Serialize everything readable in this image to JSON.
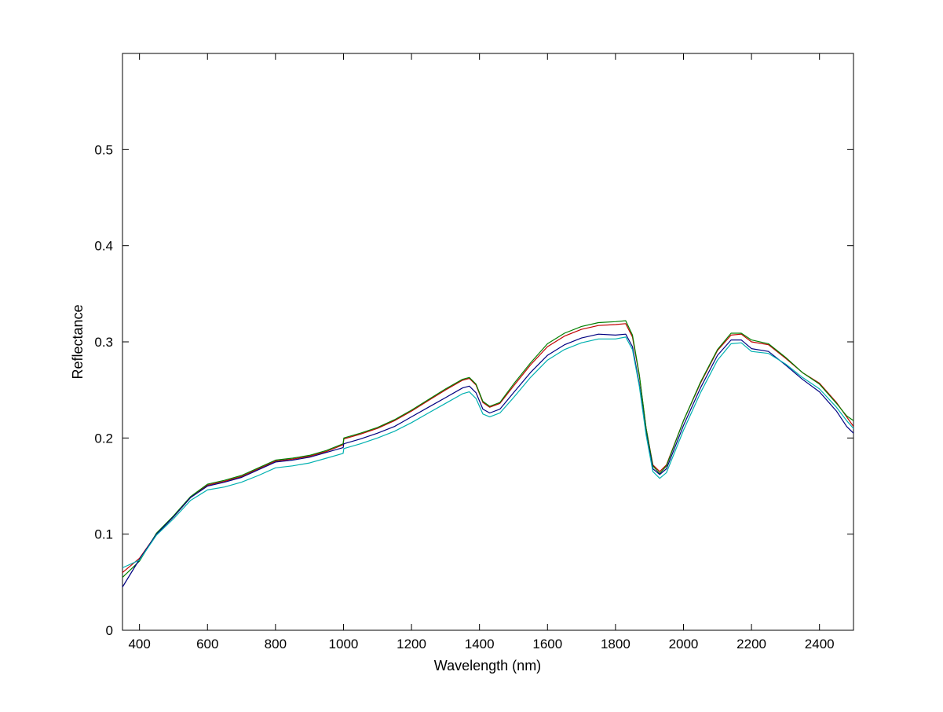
{
  "chart_data": {
    "type": "line",
    "xlabel": "Wavelength (nm)",
    "ylabel": "Reflectance",
    "xlim": [
      350,
      2500
    ],
    "ylim": [
      0,
      0.6
    ],
    "x_ticks": [
      400,
      600,
      800,
      1000,
      1200,
      1400,
      1600,
      1800,
      2000,
      2200,
      2400
    ],
    "y_ticks": [
      0,
      0.1,
      0.2,
      0.3,
      0.4,
      0.5
    ],
    "y_tick_labels": [
      "0",
      "0.1",
      "0.2",
      "0.3",
      "0.4",
      "0.5"
    ],
    "grid": false,
    "series": [
      {
        "color": "#c00000",
        "points": [
          [
            350,
            0.06
          ],
          [
            400,
            0.075
          ],
          [
            450,
            0.1
          ],
          [
            500,
            0.118
          ],
          [
            550,
            0.138
          ],
          [
            600,
            0.151
          ],
          [
            650,
            0.155
          ],
          [
            700,
            0.16
          ],
          [
            750,
            0.168
          ],
          [
            800,
            0.176
          ],
          [
            850,
            0.178
          ],
          [
            900,
            0.181
          ],
          [
            950,
            0.186
          ],
          [
            999,
            0.193
          ],
          [
            1001,
            0.199
          ],
          [
            1050,
            0.204
          ],
          [
            1100,
            0.21
          ],
          [
            1150,
            0.218
          ],
          [
            1200,
            0.228
          ],
          [
            1250,
            0.239
          ],
          [
            1300,
            0.25
          ],
          [
            1350,
            0.26
          ],
          [
            1370,
            0.262
          ],
          [
            1390,
            0.255
          ],
          [
            1410,
            0.237
          ],
          [
            1430,
            0.232
          ],
          [
            1460,
            0.236
          ],
          [
            1500,
            0.254
          ],
          [
            1550,
            0.276
          ],
          [
            1600,
            0.295
          ],
          [
            1650,
            0.306
          ],
          [
            1700,
            0.313
          ],
          [
            1750,
            0.317
          ],
          [
            1800,
            0.318
          ],
          [
            1830,
            0.319
          ],
          [
            1850,
            0.305
          ],
          [
            1870,
            0.265
          ],
          [
            1890,
            0.21
          ],
          [
            1910,
            0.172
          ],
          [
            1930,
            0.165
          ],
          [
            1950,
            0.172
          ],
          [
            2000,
            0.218
          ],
          [
            2050,
            0.257
          ],
          [
            2100,
            0.291
          ],
          [
            2140,
            0.307
          ],
          [
            2170,
            0.308
          ],
          [
            2200,
            0.3
          ],
          [
            2250,
            0.297
          ],
          [
            2300,
            0.283
          ],
          [
            2350,
            0.268
          ],
          [
            2400,
            0.257
          ],
          [
            2450,
            0.237
          ],
          [
            2480,
            0.222
          ],
          [
            2500,
            0.212
          ]
        ]
      },
      {
        "color": "#008000",
        "points": [
          [
            350,
            0.055
          ],
          [
            400,
            0.072
          ],
          [
            450,
            0.101
          ],
          [
            500,
            0.119
          ],
          [
            550,
            0.139
          ],
          [
            600,
            0.152
          ],
          [
            650,
            0.156
          ],
          [
            700,
            0.161
          ],
          [
            750,
            0.169
          ],
          [
            800,
            0.177
          ],
          [
            850,
            0.179
          ],
          [
            900,
            0.182
          ],
          [
            950,
            0.187
          ],
          [
            999,
            0.194
          ],
          [
            1001,
            0.2
          ],
          [
            1050,
            0.205
          ],
          [
            1100,
            0.211
          ],
          [
            1150,
            0.219
          ],
          [
            1200,
            0.229
          ],
          [
            1250,
            0.24
          ],
          [
            1300,
            0.251
          ],
          [
            1350,
            0.261
          ],
          [
            1370,
            0.263
          ],
          [
            1390,
            0.256
          ],
          [
            1410,
            0.238
          ],
          [
            1430,
            0.233
          ],
          [
            1460,
            0.237
          ],
          [
            1500,
            0.256
          ],
          [
            1550,
            0.278
          ],
          [
            1600,
            0.298
          ],
          [
            1650,
            0.309
          ],
          [
            1700,
            0.316
          ],
          [
            1750,
            0.32
          ],
          [
            1800,
            0.321
          ],
          [
            1830,
            0.322
          ],
          [
            1850,
            0.307
          ],
          [
            1870,
            0.266
          ],
          [
            1890,
            0.21
          ],
          [
            1910,
            0.171
          ],
          [
            1930,
            0.163
          ],
          [
            1950,
            0.171
          ],
          [
            2000,
            0.218
          ],
          [
            2050,
            0.258
          ],
          [
            2100,
            0.292
          ],
          [
            2140,
            0.309
          ],
          [
            2170,
            0.309
          ],
          [
            2200,
            0.302
          ],
          [
            2250,
            0.298
          ],
          [
            2300,
            0.284
          ],
          [
            2350,
            0.268
          ],
          [
            2400,
            0.256
          ],
          [
            2450,
            0.236
          ],
          [
            2480,
            0.223
          ],
          [
            2500,
            0.218
          ]
        ]
      },
      {
        "color": "#000080",
        "points": [
          [
            350,
            0.045
          ],
          [
            400,
            0.074
          ],
          [
            450,
            0.1
          ],
          [
            500,
            0.118
          ],
          [
            550,
            0.138
          ],
          [
            600,
            0.15
          ],
          [
            650,
            0.154
          ],
          [
            700,
            0.159
          ],
          [
            750,
            0.167
          ],
          [
            800,
            0.175
          ],
          [
            850,
            0.177
          ],
          [
            900,
            0.18
          ],
          [
            950,
            0.185
          ],
          [
            999,
            0.19
          ],
          [
            1001,
            0.194
          ],
          [
            1050,
            0.199
          ],
          [
            1100,
            0.205
          ],
          [
            1150,
            0.212
          ],
          [
            1200,
            0.222
          ],
          [
            1250,
            0.232
          ],
          [
            1300,
            0.242
          ],
          [
            1350,
            0.252
          ],
          [
            1370,
            0.254
          ],
          [
            1390,
            0.247
          ],
          [
            1410,
            0.23
          ],
          [
            1430,
            0.226
          ],
          [
            1460,
            0.23
          ],
          [
            1500,
            0.247
          ],
          [
            1550,
            0.268
          ],
          [
            1600,
            0.286
          ],
          [
            1650,
            0.297
          ],
          [
            1700,
            0.304
          ],
          [
            1750,
            0.308
          ],
          [
            1800,
            0.307
          ],
          [
            1830,
            0.308
          ],
          [
            1850,
            0.295
          ],
          [
            1870,
            0.256
          ],
          [
            1890,
            0.205
          ],
          [
            1910,
            0.168
          ],
          [
            1930,
            0.162
          ],
          [
            1950,
            0.168
          ],
          [
            2000,
            0.213
          ],
          [
            2050,
            0.252
          ],
          [
            2100,
            0.286
          ],
          [
            2140,
            0.302
          ],
          [
            2170,
            0.302
          ],
          [
            2200,
            0.293
          ],
          [
            2250,
            0.29
          ],
          [
            2300,
            0.276
          ],
          [
            2350,
            0.261
          ],
          [
            2400,
            0.248
          ],
          [
            2450,
            0.228
          ],
          [
            2480,
            0.212
          ],
          [
            2500,
            0.205
          ]
        ]
      },
      {
        "color": "#00b0b0",
        "points": [
          [
            350,
            0.065
          ],
          [
            400,
            0.073
          ],
          [
            450,
            0.099
          ],
          [
            500,
            0.116
          ],
          [
            550,
            0.135
          ],
          [
            600,
            0.146
          ],
          [
            650,
            0.149
          ],
          [
            700,
            0.154
          ],
          [
            750,
            0.161
          ],
          [
            800,
            0.169
          ],
          [
            850,
            0.171
          ],
          [
            900,
            0.174
          ],
          [
            950,
            0.179
          ],
          [
            999,
            0.184
          ],
          [
            1001,
            0.189
          ],
          [
            1050,
            0.194
          ],
          [
            1100,
            0.2
          ],
          [
            1150,
            0.207
          ],
          [
            1200,
            0.216
          ],
          [
            1250,
            0.226
          ],
          [
            1300,
            0.236
          ],
          [
            1350,
            0.246
          ],
          [
            1370,
            0.248
          ],
          [
            1390,
            0.241
          ],
          [
            1410,
            0.225
          ],
          [
            1430,
            0.222
          ],
          [
            1460,
            0.226
          ],
          [
            1500,
            0.242
          ],
          [
            1550,
            0.263
          ],
          [
            1600,
            0.281
          ],
          [
            1650,
            0.292
          ],
          [
            1700,
            0.299
          ],
          [
            1750,
            0.303
          ],
          [
            1800,
            0.303
          ],
          [
            1830,
            0.305
          ],
          [
            1850,
            0.292
          ],
          [
            1870,
            0.254
          ],
          [
            1890,
            0.203
          ],
          [
            1910,
            0.165
          ],
          [
            1930,
            0.158
          ],
          [
            1950,
            0.164
          ],
          [
            2000,
            0.208
          ],
          [
            2050,
            0.247
          ],
          [
            2100,
            0.281
          ],
          [
            2140,
            0.298
          ],
          [
            2170,
            0.299
          ],
          [
            2200,
            0.29
          ],
          [
            2250,
            0.288
          ],
          [
            2300,
            0.277
          ],
          [
            2350,
            0.263
          ],
          [
            2400,
            0.251
          ],
          [
            2450,
            0.232
          ],
          [
            2480,
            0.218
          ],
          [
            2500,
            0.21
          ]
        ]
      }
    ]
  }
}
